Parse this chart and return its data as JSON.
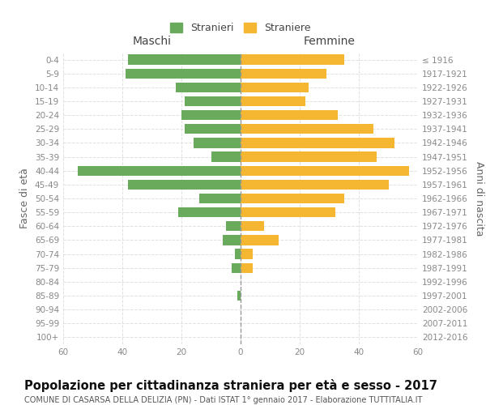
{
  "age_groups": [
    "0-4",
    "5-9",
    "10-14",
    "15-19",
    "20-24",
    "25-29",
    "30-34",
    "35-39",
    "40-44",
    "45-49",
    "50-54",
    "55-59",
    "60-64",
    "65-69",
    "70-74",
    "75-79",
    "80-84",
    "85-89",
    "90-94",
    "95-99",
    "100+"
  ],
  "birth_years": [
    "2012-2016",
    "2007-2011",
    "2002-2006",
    "1997-2001",
    "1992-1996",
    "1987-1991",
    "1982-1986",
    "1977-1981",
    "1972-1976",
    "1967-1971",
    "1962-1966",
    "1957-1961",
    "1952-1956",
    "1947-1951",
    "1942-1946",
    "1937-1941",
    "1932-1936",
    "1927-1931",
    "1922-1926",
    "1917-1921",
    "≤ 1916"
  ],
  "maschi": [
    38,
    39,
    22,
    19,
    20,
    19,
    16,
    10,
    55,
    38,
    14,
    21,
    5,
    6,
    2,
    3,
    0,
    1,
    0,
    0,
    0
  ],
  "femmine": [
    35,
    29,
    23,
    22,
    33,
    45,
    52,
    46,
    57,
    50,
    35,
    32,
    8,
    13,
    4,
    4,
    0,
    0,
    0,
    0,
    0
  ],
  "male_color": "#6aaa5c",
  "female_color": "#f5b731",
  "bar_height": 0.72,
  "xlim": 60,
  "title": "Popolazione per cittadinanza straniera per età e sesso - 2017",
  "subtitle": "COMUNE DI CASARSA DELLA DELIZIA (PN) - Dati ISTAT 1° gennaio 2017 - Elaborazione TUTTITALIA.IT",
  "xlabel_left": "Maschi",
  "xlabel_right": "Femmine",
  "ylabel_left": "Fasce di età",
  "ylabel_right": "Anni di nascita",
  "legend_male": "Stranieri",
  "legend_female": "Straniere",
  "background_color": "#ffffff",
  "grid_color": "#dddddd",
  "center_line_color": "#999999",
  "tick_color": "#888888",
  "title_fontsize": 10.5,
  "subtitle_fontsize": 7.0,
  "label_fontsize": 9,
  "tick_fontsize": 7.5
}
